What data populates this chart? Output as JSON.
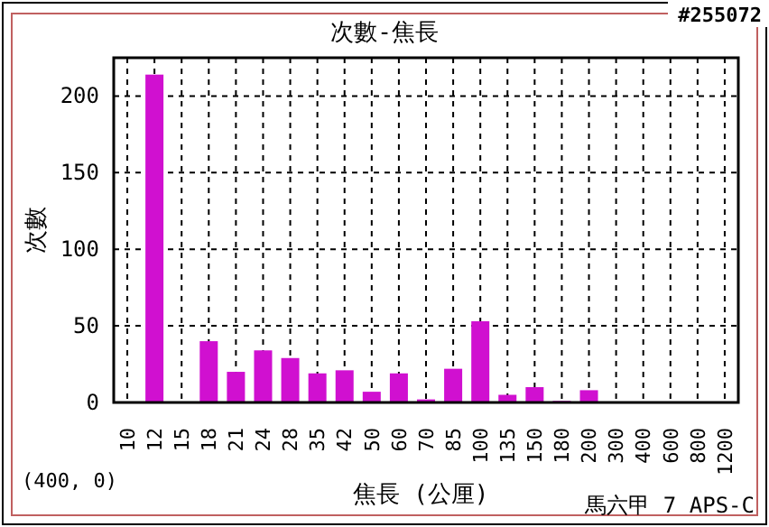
{
  "chart_data": {
    "type": "bar",
    "title": "次數-焦長",
    "xlabel": "焦長 (公厘)",
    "ylabel": "次數",
    "categories": [
      "10",
      "12",
      "15",
      "18",
      "21",
      "24",
      "28",
      "35",
      "42",
      "50",
      "60",
      "70",
      "85",
      "100",
      "135",
      "150",
      "180",
      "200",
      "300",
      "400",
      "600",
      "800",
      "1200"
    ],
    "values": [
      0,
      214,
      0,
      40,
      20,
      34,
      29,
      19,
      21,
      7,
      19,
      2,
      22,
      53,
      5,
      10,
      1,
      8,
      0,
      0,
      0,
      0,
      0
    ],
    "color": "#d010d0",
    "ylim": [
      0,
      225
    ],
    "yticks": [
      0,
      50,
      100,
      150,
      200
    ],
    "grid": true,
    "annotations": [
      "#255072",
      "(400, 0)",
      "馬六甲 7 APS-C"
    ]
  }
}
